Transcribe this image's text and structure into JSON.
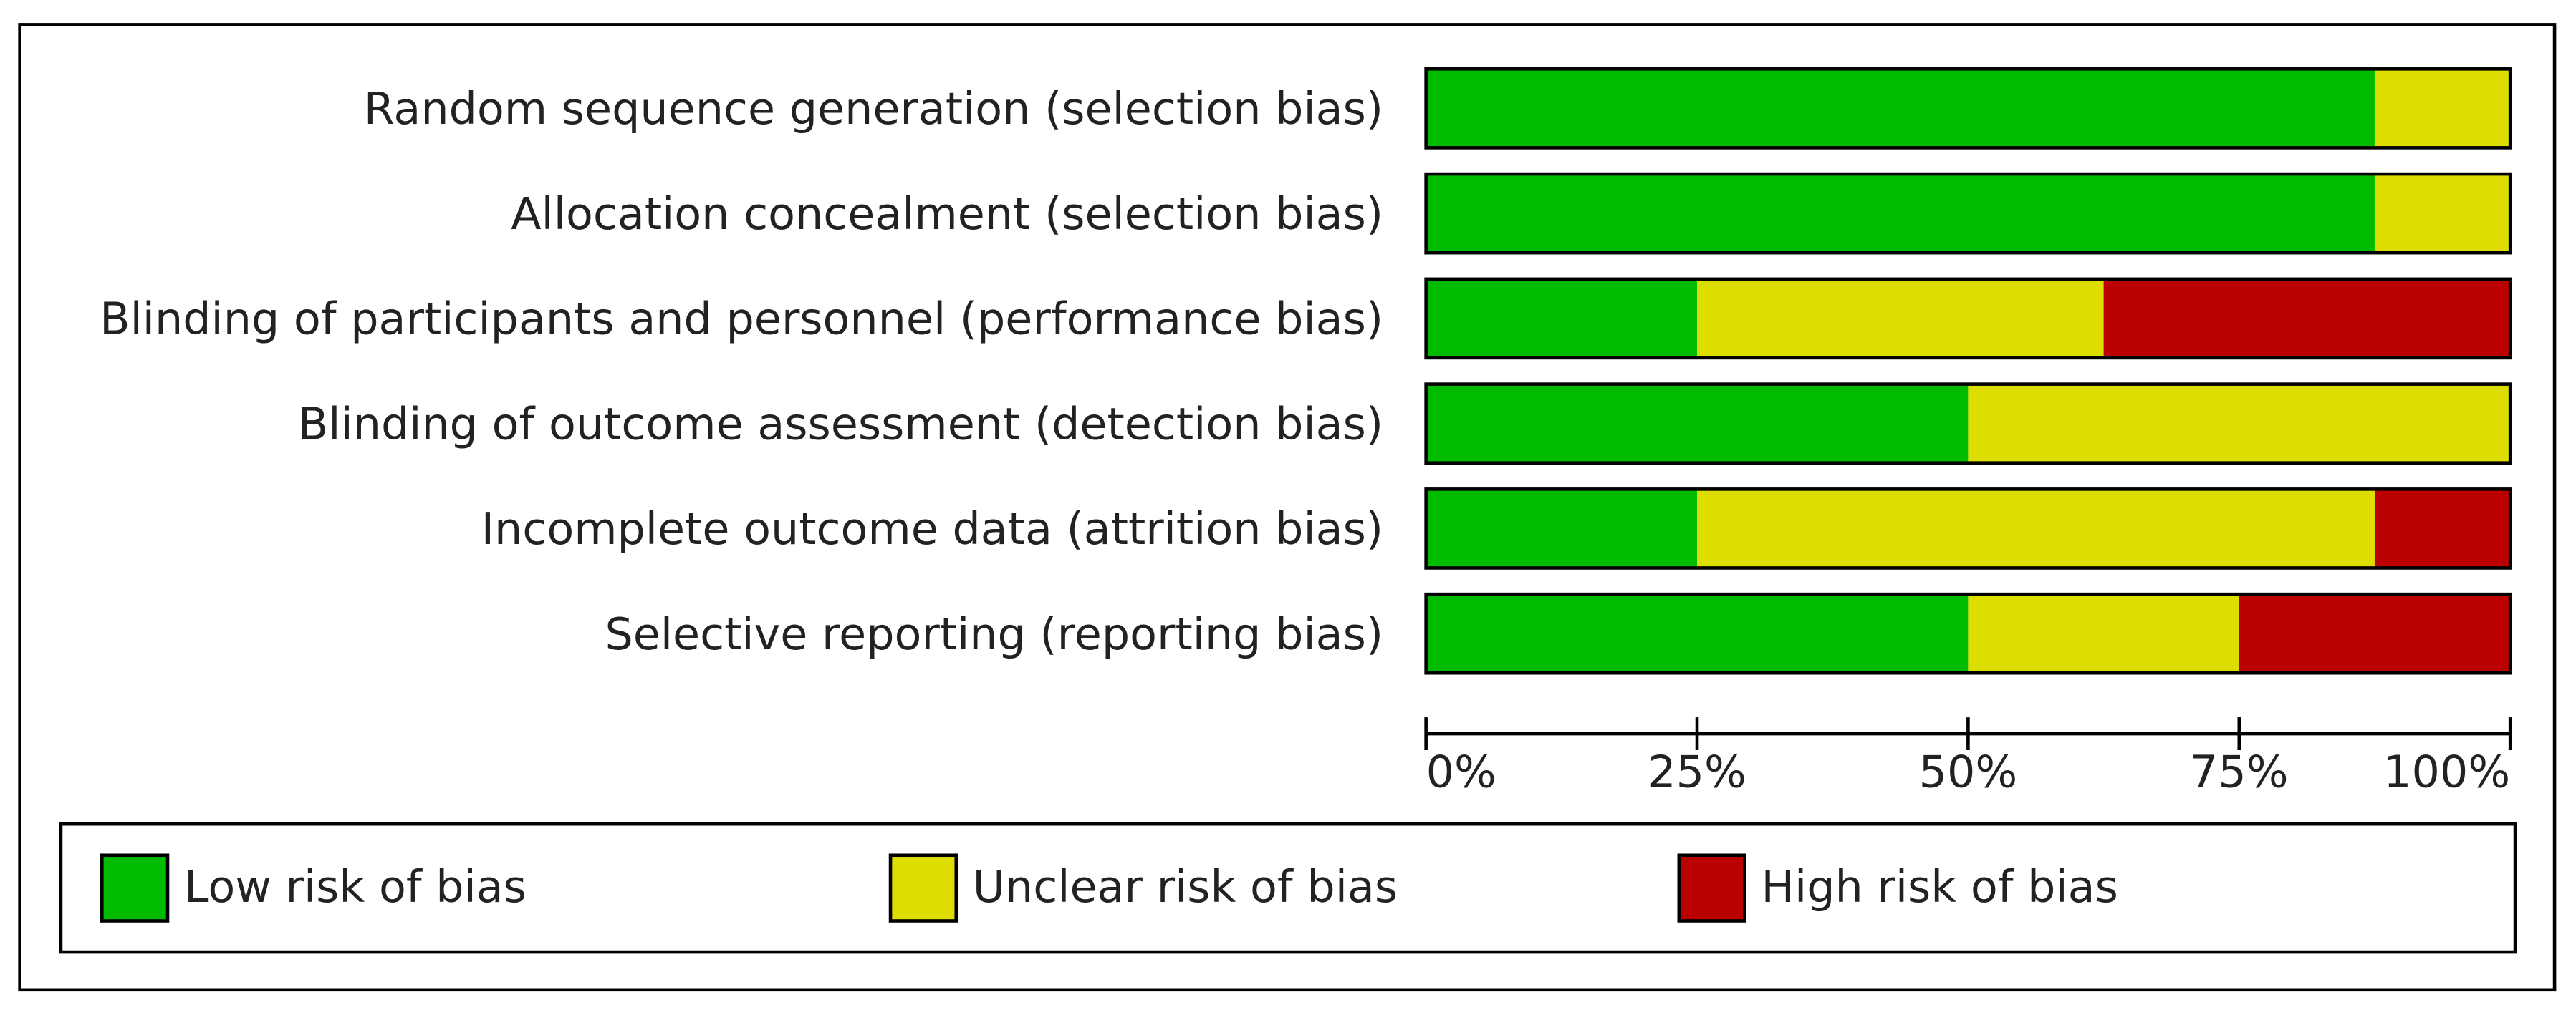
{
  "chart_data": {
    "type": "stacked_bar_horizontal",
    "categories": [
      "Random sequence generation (selection bias)",
      "Allocation concealment (selection bias)",
      "Blinding of participants and personnel (performance bias)",
      "Blinding of outcome assessment (detection bias)",
      "Incomplete outcome data (attrition bias)",
      "Selective reporting (reporting bias)"
    ],
    "series": [
      {
        "name": "Low risk of bias",
        "color": "#00bb00",
        "values": [
          87.5,
          87.5,
          25,
          50,
          25,
          50
        ]
      },
      {
        "name": "Unclear risk of bias",
        "color": "#dddd00",
        "values": [
          12.5,
          12.5,
          37.5,
          50,
          62.5,
          25
        ]
      },
      {
        "name": "High risk of bias",
        "color": "#bb0000",
        "values": [
          0,
          0,
          37.5,
          0,
          12.5,
          25
        ]
      }
    ],
    "xlim": [
      0,
      100
    ],
    "xticks": [
      {
        "value": 0,
        "label": "0%"
      },
      {
        "value": 25,
        "label": "25%"
      },
      {
        "value": 50,
        "label": "50%"
      },
      {
        "value": 75,
        "label": "75%"
      },
      {
        "value": 100,
        "label": "100%"
      }
    ],
    "legend": "bottom"
  }
}
